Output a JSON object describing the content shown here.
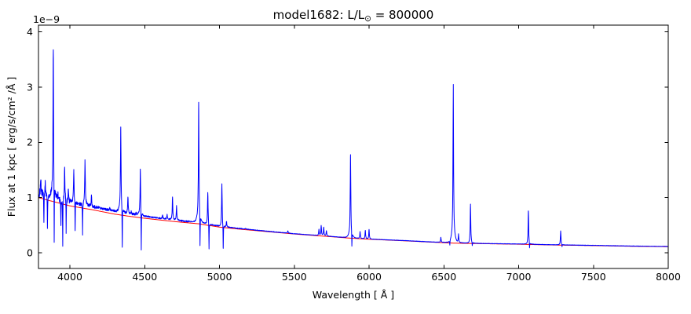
{
  "figure": {
    "background_color": "#ffffff",
    "axes_color": "#000000"
  },
  "chart_data": {
    "type": "line",
    "title": "model1682: L/L⊙ = 800000",
    "title_parts": {
      "prefix": "model1682: L/L",
      "subscript": "⊙",
      "suffix": " = 800000"
    },
    "xlabel": "Wavelength [ Å ]",
    "ylabel": "Flux at 1 kpc [ erg/s/cm² /Å ]",
    "y_offset_text": "1e−9",
    "grid": false,
    "legend": "none",
    "xlim": [
      3790,
      8000
    ],
    "ylim": [
      -0.2844,
      4.1244
    ],
    "xticks": [
      {
        "value": 4000,
        "label": "4000"
      },
      {
        "value": 4500,
        "label": "4500"
      },
      {
        "value": 5000,
        "label": "5000"
      },
      {
        "value": 5500,
        "label": "5500"
      },
      {
        "value": 6000,
        "label": "6000"
      },
      {
        "value": 6500,
        "label": "6500"
      },
      {
        "value": 7000,
        "label": "7000"
      },
      {
        "value": 7500,
        "label": "7500"
      },
      {
        "value": 8000,
        "label": "8000"
      }
    ],
    "yticks": [
      {
        "value": 0,
        "label": "0"
      },
      {
        "value": 1,
        "label": "1"
      },
      {
        "value": 2,
        "label": "2"
      },
      {
        "value": 3,
        "label": "3"
      },
      {
        "value": 4,
        "label": "4"
      }
    ],
    "series": [
      {
        "name": "smooth-continuum",
        "color": "#ff0000",
        "role": "continuum",
        "anchors": [
          [
            3790,
            1.0
          ],
          [
            3850,
            0.955
          ],
          [
            3900,
            0.92
          ],
          [
            3950,
            0.885
          ],
          [
            4000,
            0.85
          ],
          [
            4075,
            0.815
          ],
          [
            4150,
            0.78
          ],
          [
            4225,
            0.74
          ],
          [
            4300,
            0.7
          ],
          [
            4400,
            0.66
          ],
          [
            4500,
            0.625
          ],
          [
            4600,
            0.595
          ],
          [
            4700,
            0.565
          ],
          [
            4780,
            0.545
          ],
          [
            4860,
            0.525
          ],
          [
            4930,
            0.495
          ],
          [
            5000,
            0.465
          ],
          [
            5125,
            0.43
          ],
          [
            5250,
            0.4
          ],
          [
            5375,
            0.37
          ],
          [
            5500,
            0.34
          ],
          [
            5625,
            0.315
          ],
          [
            5750,
            0.29
          ],
          [
            5875,
            0.265
          ],
          [
            6000,
            0.245
          ],
          [
            6125,
            0.23
          ],
          [
            6250,
            0.215
          ],
          [
            6400,
            0.195
          ],
          [
            6563,
            0.175
          ],
          [
            6650,
            0.17
          ],
          [
            6750,
            0.165
          ],
          [
            6875,
            0.16
          ],
          [
            7000,
            0.155
          ],
          [
            7125,
            0.147
          ],
          [
            7250,
            0.14
          ],
          [
            7375,
            0.135
          ],
          [
            7500,
            0.13
          ],
          [
            7625,
            0.124
          ],
          [
            7750,
            0.118
          ],
          [
            7875,
            0.114
          ],
          [
            8000,
            0.11
          ]
        ]
      },
      {
        "name": "model-spectrum",
        "color": "#0000ff",
        "role": "spectrum",
        "continuum_offset_anchors": [
          [
            3790,
            0.07
          ],
          [
            4100,
            0.06
          ],
          [
            4350,
            0.05
          ],
          [
            4600,
            0.032
          ],
          [
            4900,
            0.02
          ],
          [
            5100,
            0.012
          ],
          [
            5400,
            0.006
          ],
          [
            6000,
            0.004
          ],
          [
            8000,
            0.004
          ]
        ],
        "noise_zones": [
          {
            "to": 3830,
            "amp": 0.085
          },
          {
            "to": 4010,
            "amp": 0.05
          },
          {
            "to": 4200,
            "amp": 0.028
          },
          {
            "to": 4450,
            "amp": 0.02
          },
          {
            "to": 4800,
            "amp": 0.013
          },
          {
            "to": 5150,
            "amp": 0.008
          },
          {
            "to": 5500,
            "amp": 0.005
          },
          {
            "to": 8000,
            "amp": 0.0032
          }
        ],
        "emission_lines": [
          {
            "wavelength": 3805,
            "peak": 1.36
          },
          {
            "wavelength": 3835,
            "peak": 1.28
          },
          {
            "wavelength": 3889,
            "peak": 3.75
          },
          {
            "wavelength": 3920,
            "peak": 1.05
          },
          {
            "wavelength": 3965,
            "peak": 1.55
          },
          {
            "wavelength": 3990,
            "peak": 1.12
          },
          {
            "wavelength": 4026,
            "peak": 1.5
          },
          {
            "wavelength": 4101,
            "peak": 1.66
          },
          {
            "wavelength": 4144,
            "peak": 1.02
          },
          {
            "wavelength": 4267,
            "peak": 0.82
          },
          {
            "wavelength": 4340,
            "peak": 2.27
          },
          {
            "wavelength": 4388,
            "peak": 1.0
          },
          {
            "wavelength": 4410,
            "peak": 0.75
          },
          {
            "wavelength": 4442,
            "peak": 0.72
          },
          {
            "wavelength": 4471,
            "peak": 1.54
          },
          {
            "wavelength": 4620,
            "peak": 0.68
          },
          {
            "wavelength": 4650,
            "peak": 0.7
          },
          {
            "wavelength": 4686,
            "peak": 1.0
          },
          {
            "wavelength": 4713,
            "peak": 0.85
          },
          {
            "wavelength": 4861,
            "peak": 2.73
          },
          {
            "wavelength": 4922,
            "peak": 1.1
          },
          {
            "wavelength": 5016,
            "peak": 1.25
          },
          {
            "wavelength": 5047,
            "peak": 0.56
          },
          {
            "wavelength": 5175,
            "peak": 0.44
          },
          {
            "wavelength": 5457,
            "peak": 0.4
          },
          {
            "wavelength": 5665,
            "peak": 0.42
          },
          {
            "wavelength": 5680,
            "peak": 0.49
          },
          {
            "wavelength": 5697,
            "peak": 0.46
          },
          {
            "wavelength": 5715,
            "peak": 0.4
          },
          {
            "wavelength": 5876,
            "peak": 1.78
          },
          {
            "wavelength": 5940,
            "peak": 0.38
          },
          {
            "wavelength": 5975,
            "peak": 0.4
          },
          {
            "wavelength": 6000,
            "peak": 0.42
          },
          {
            "wavelength": 6480,
            "peak": 0.28
          },
          {
            "wavelength": 6563,
            "peak": 3.05
          },
          {
            "wavelength": 6598,
            "peak": 0.33
          },
          {
            "wavelength": 6678,
            "peak": 0.88
          },
          {
            "wavelength": 7065,
            "peak": 0.76
          },
          {
            "wavelength": 7281,
            "peak": 0.4
          }
        ],
        "absorption_dips": [
          {
            "wavelength": 3826,
            "flux": 0.55
          },
          {
            "wavelength": 3850,
            "flux": 0.44
          },
          {
            "wavelength": 3895,
            "flux": 0.19
          },
          {
            "wavelength": 3940,
            "flux": 0.5
          },
          {
            "wavelength": 3952,
            "flux": 0.12
          },
          {
            "wavelength": 3975,
            "flux": 0.35
          },
          {
            "wavelength": 4035,
            "flux": 0.4
          },
          {
            "wavelength": 4085,
            "flux": 0.32
          },
          {
            "wavelength": 4350,
            "flux": 0.1
          },
          {
            "wavelength": 4477,
            "flux": 0.05
          },
          {
            "wavelength": 4870,
            "flux": 0.13
          },
          {
            "wavelength": 4930,
            "flux": 0.07
          },
          {
            "wavelength": 5025,
            "flux": 0.08
          },
          {
            "wavelength": 5885,
            "flux": 0.12
          },
          {
            "wavelength": 6540,
            "flux": 0.14
          },
          {
            "wavelength": 6690,
            "flux": 0.13
          },
          {
            "wavelength": 7073,
            "flux": 0.09
          },
          {
            "wavelength": 7290,
            "flux": 0.11
          }
        ]
      }
    ]
  }
}
